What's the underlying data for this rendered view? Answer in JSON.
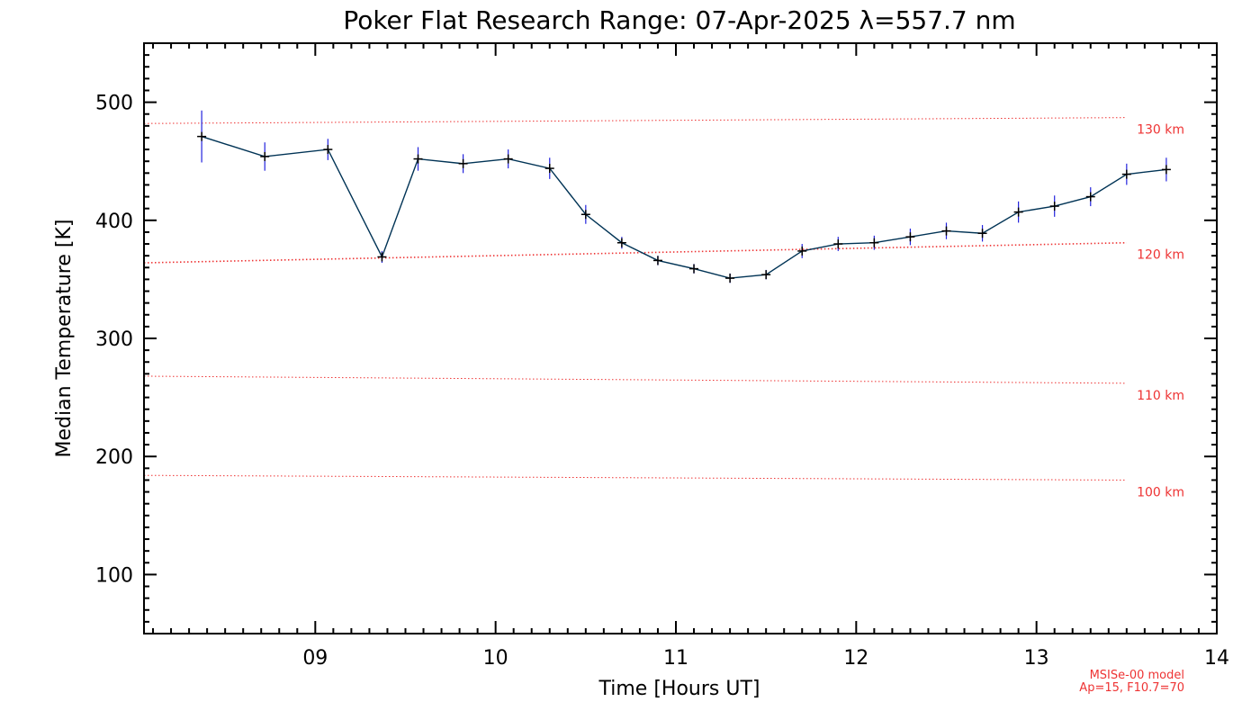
{
  "chart_data": {
    "type": "line",
    "title": "Poker Flat Research Range: 07-Apr-2025 λ=557.7 nm",
    "xlabel": "Time [Hours UT]",
    "ylabel": "Median Temperature [K]",
    "xlim": [
      8.05,
      14.0
    ],
    "ylim": [
      50,
      550
    ],
    "x_ticks": [
      9,
      10,
      11,
      12,
      13,
      14
    ],
    "x_tick_labels": [
      "09",
      "10",
      "11",
      "12",
      "13",
      "14"
    ],
    "y_ticks": [
      100,
      200,
      300,
      400,
      500
    ],
    "y_tick_labels": [
      "100",
      "200",
      "300",
      "400",
      "500"
    ],
    "colors": {
      "series": "#003355",
      "error_bars": "#2222dd",
      "markers": "#000000",
      "model": "#ee3333"
    },
    "series": [
      {
        "x": [
          8.37,
          8.72,
          9.07,
          9.37,
          9.57,
          9.82,
          10.07,
          10.3,
          10.5,
          10.7,
          10.9,
          11.1,
          11.3,
          11.5,
          11.7,
          11.9,
          12.1,
          12.3,
          12.5,
          12.7,
          12.9,
          13.1,
          13.3,
          13.5,
          13.72
        ],
        "y": [
          471,
          454,
          460,
          369,
          452,
          448,
          452,
          444,
          405,
          381,
          366,
          359,
          351,
          354,
          374,
          380,
          381,
          386,
          391,
          389,
          407,
          412,
          420,
          439,
          443
        ],
        "error": [
          22,
          12,
          9,
          5,
          10,
          8,
          8,
          9,
          8,
          5,
          4,
          4,
          4,
          4,
          6,
          6,
          6,
          7,
          7,
          7,
          9,
          9,
          8,
          9,
          10
        ]
      }
    ],
    "model_lines": [
      {
        "label": "130 km",
        "x": [
          8.05,
          13.5
        ],
        "y": [
          482,
          487
        ]
      },
      {
        "label": "120 km",
        "x": [
          8.05,
          13.5
        ],
        "y": [
          364,
          381
        ]
      },
      {
        "label": "110 km",
        "x": [
          8.05,
          13.5
        ],
        "y": [
          268,
          262
        ]
      },
      {
        "label": "100 km",
        "x": [
          8.05,
          13.5
        ],
        "y": [
          184,
          180
        ]
      }
    ],
    "footnote": [
      "MSISe-00 model",
      "Ap=15, F10.7=70"
    ]
  }
}
